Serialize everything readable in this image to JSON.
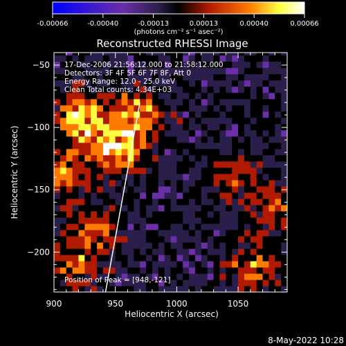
{
  "chart_data": {
    "type": "heatmap",
    "title": "Reconstructed RHESSI Image",
    "xlabel": "Heliocentric X (arcsec)",
    "ylabel": "Heliocentric Y (arcsec)",
    "xlim": [
      900,
      1090
    ],
    "ylim": [
      -232,
      -40
    ],
    "x_ticks": [
      "900",
      "950",
      "1000",
      "1050"
    ],
    "y_ticks": [
      "-50",
      "-100",
      "-150",
      "-200"
    ],
    "colorbar": {
      "ticks": [
        "-0.00066",
        "-0.00040",
        "-0.00013",
        "0.00013",
        "0.00040",
        "0.00066"
      ],
      "unit_label": "(photons cm⁻² s⁻¹ asec⁻²)",
      "colors": [
        "#0000ff",
        "#6a2fa6",
        "#2a1f4a",
        "#000000",
        "#b01a00",
        "#ff7a00",
        "#ffff40",
        "#ffffff"
      ]
    },
    "annotations": [
      "17-Dec-2006 21:56:12.000 to 21:58:12.000",
      "Detectors: 3F 4F 5F 6F 7F 8F, Att 0",
      "Energy Range: 12.0 - 25.0 keV",
      "Clean     Total counts: 4.34E+03"
    ],
    "peak_label": "Position of Peak = [948,-121]",
    "limb_line": {
      "x": [
        942,
        970
      ],
      "y": [
        -232,
        -80
      ]
    },
    "bright_regions": [
      {
        "x": 920,
        "y": -95,
        "value": 0.00066
      },
      {
        "x": 965,
        "y": -92,
        "value": 0.00055
      },
      {
        "x": 948,
        "y": -121,
        "value": 0.00066
      },
      {
        "x": 905,
        "y": -140,
        "value": 0.00045
      },
      {
        "x": 930,
        "y": -185,
        "value": 0.0004
      },
      {
        "x": 915,
        "y": -215,
        "value": 0.00035
      },
      {
        "x": 1062,
        "y": -215,
        "value": 0.0004
      },
      {
        "x": 1040,
        "y": -140,
        "value": 0.0003
      },
      {
        "x": 1075,
        "y": -165,
        "value": 0.0003
      }
    ]
  },
  "footer_date": "8-May-2022 10:28"
}
